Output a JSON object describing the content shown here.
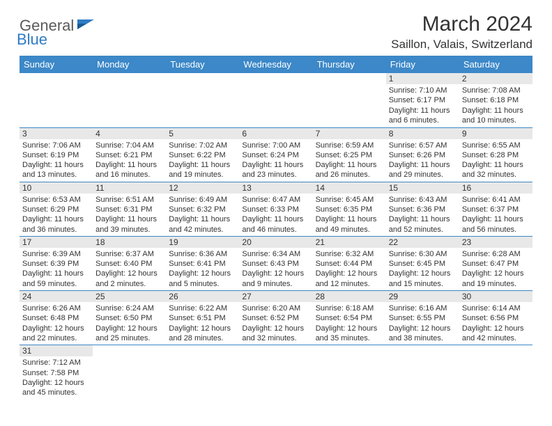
{
  "logo": {
    "part1": "General",
    "part2": "Blue"
  },
  "title": "March 2024",
  "location": "Saillon, Valais, Switzerland",
  "colors": {
    "header_bg": "#3c88c8",
    "header_fg": "#ffffff",
    "daynum_bg": "#e8e8e8",
    "row_border": "#3c88c8",
    "logo_gray": "#5a5a5a",
    "logo_blue": "#2f7bc4",
    "page_bg": "#ffffff",
    "text": "#333333"
  },
  "weekdays": [
    "Sunday",
    "Monday",
    "Tuesday",
    "Wednesday",
    "Thursday",
    "Friday",
    "Saturday"
  ],
  "weeks": [
    [
      {
        "n": "",
        "sr": "",
        "ss": "",
        "dl": ""
      },
      {
        "n": "",
        "sr": "",
        "ss": "",
        "dl": ""
      },
      {
        "n": "",
        "sr": "",
        "ss": "",
        "dl": ""
      },
      {
        "n": "",
        "sr": "",
        "ss": "",
        "dl": ""
      },
      {
        "n": "",
        "sr": "",
        "ss": "",
        "dl": ""
      },
      {
        "n": "1",
        "sr": "Sunrise: 7:10 AM",
        "ss": "Sunset: 6:17 PM",
        "dl": "Daylight: 11 hours and 6 minutes."
      },
      {
        "n": "2",
        "sr": "Sunrise: 7:08 AM",
        "ss": "Sunset: 6:18 PM",
        "dl": "Daylight: 11 hours and 10 minutes."
      }
    ],
    [
      {
        "n": "3",
        "sr": "Sunrise: 7:06 AM",
        "ss": "Sunset: 6:19 PM",
        "dl": "Daylight: 11 hours and 13 minutes."
      },
      {
        "n": "4",
        "sr": "Sunrise: 7:04 AM",
        "ss": "Sunset: 6:21 PM",
        "dl": "Daylight: 11 hours and 16 minutes."
      },
      {
        "n": "5",
        "sr": "Sunrise: 7:02 AM",
        "ss": "Sunset: 6:22 PM",
        "dl": "Daylight: 11 hours and 19 minutes."
      },
      {
        "n": "6",
        "sr": "Sunrise: 7:00 AM",
        "ss": "Sunset: 6:24 PM",
        "dl": "Daylight: 11 hours and 23 minutes."
      },
      {
        "n": "7",
        "sr": "Sunrise: 6:59 AM",
        "ss": "Sunset: 6:25 PM",
        "dl": "Daylight: 11 hours and 26 minutes."
      },
      {
        "n": "8",
        "sr": "Sunrise: 6:57 AM",
        "ss": "Sunset: 6:26 PM",
        "dl": "Daylight: 11 hours and 29 minutes."
      },
      {
        "n": "9",
        "sr": "Sunrise: 6:55 AM",
        "ss": "Sunset: 6:28 PM",
        "dl": "Daylight: 11 hours and 32 minutes."
      }
    ],
    [
      {
        "n": "10",
        "sr": "Sunrise: 6:53 AM",
        "ss": "Sunset: 6:29 PM",
        "dl": "Daylight: 11 hours and 36 minutes."
      },
      {
        "n": "11",
        "sr": "Sunrise: 6:51 AM",
        "ss": "Sunset: 6:31 PM",
        "dl": "Daylight: 11 hours and 39 minutes."
      },
      {
        "n": "12",
        "sr": "Sunrise: 6:49 AM",
        "ss": "Sunset: 6:32 PM",
        "dl": "Daylight: 11 hours and 42 minutes."
      },
      {
        "n": "13",
        "sr": "Sunrise: 6:47 AM",
        "ss": "Sunset: 6:33 PM",
        "dl": "Daylight: 11 hours and 46 minutes."
      },
      {
        "n": "14",
        "sr": "Sunrise: 6:45 AM",
        "ss": "Sunset: 6:35 PM",
        "dl": "Daylight: 11 hours and 49 minutes."
      },
      {
        "n": "15",
        "sr": "Sunrise: 6:43 AM",
        "ss": "Sunset: 6:36 PM",
        "dl": "Daylight: 11 hours and 52 minutes."
      },
      {
        "n": "16",
        "sr": "Sunrise: 6:41 AM",
        "ss": "Sunset: 6:37 PM",
        "dl": "Daylight: 11 hours and 56 minutes."
      }
    ],
    [
      {
        "n": "17",
        "sr": "Sunrise: 6:39 AM",
        "ss": "Sunset: 6:39 PM",
        "dl": "Daylight: 11 hours and 59 minutes."
      },
      {
        "n": "18",
        "sr": "Sunrise: 6:37 AM",
        "ss": "Sunset: 6:40 PM",
        "dl": "Daylight: 12 hours and 2 minutes."
      },
      {
        "n": "19",
        "sr": "Sunrise: 6:36 AM",
        "ss": "Sunset: 6:41 PM",
        "dl": "Daylight: 12 hours and 5 minutes."
      },
      {
        "n": "20",
        "sr": "Sunrise: 6:34 AM",
        "ss": "Sunset: 6:43 PM",
        "dl": "Daylight: 12 hours and 9 minutes."
      },
      {
        "n": "21",
        "sr": "Sunrise: 6:32 AM",
        "ss": "Sunset: 6:44 PM",
        "dl": "Daylight: 12 hours and 12 minutes."
      },
      {
        "n": "22",
        "sr": "Sunrise: 6:30 AM",
        "ss": "Sunset: 6:45 PM",
        "dl": "Daylight: 12 hours and 15 minutes."
      },
      {
        "n": "23",
        "sr": "Sunrise: 6:28 AM",
        "ss": "Sunset: 6:47 PM",
        "dl": "Daylight: 12 hours and 19 minutes."
      }
    ],
    [
      {
        "n": "24",
        "sr": "Sunrise: 6:26 AM",
        "ss": "Sunset: 6:48 PM",
        "dl": "Daylight: 12 hours and 22 minutes."
      },
      {
        "n": "25",
        "sr": "Sunrise: 6:24 AM",
        "ss": "Sunset: 6:50 PM",
        "dl": "Daylight: 12 hours and 25 minutes."
      },
      {
        "n": "26",
        "sr": "Sunrise: 6:22 AM",
        "ss": "Sunset: 6:51 PM",
        "dl": "Daylight: 12 hours and 28 minutes."
      },
      {
        "n": "27",
        "sr": "Sunrise: 6:20 AM",
        "ss": "Sunset: 6:52 PM",
        "dl": "Daylight: 12 hours and 32 minutes."
      },
      {
        "n": "28",
        "sr": "Sunrise: 6:18 AM",
        "ss": "Sunset: 6:54 PM",
        "dl": "Daylight: 12 hours and 35 minutes."
      },
      {
        "n": "29",
        "sr": "Sunrise: 6:16 AM",
        "ss": "Sunset: 6:55 PM",
        "dl": "Daylight: 12 hours and 38 minutes."
      },
      {
        "n": "30",
        "sr": "Sunrise: 6:14 AM",
        "ss": "Sunset: 6:56 PM",
        "dl": "Daylight: 12 hours and 42 minutes."
      }
    ],
    [
      {
        "n": "31",
        "sr": "Sunrise: 7:12 AM",
        "ss": "Sunset: 7:58 PM",
        "dl": "Daylight: 12 hours and 45 minutes."
      },
      {
        "n": "",
        "sr": "",
        "ss": "",
        "dl": ""
      },
      {
        "n": "",
        "sr": "",
        "ss": "",
        "dl": ""
      },
      {
        "n": "",
        "sr": "",
        "ss": "",
        "dl": ""
      },
      {
        "n": "",
        "sr": "",
        "ss": "",
        "dl": ""
      },
      {
        "n": "",
        "sr": "",
        "ss": "",
        "dl": ""
      },
      {
        "n": "",
        "sr": "",
        "ss": "",
        "dl": ""
      }
    ]
  ]
}
